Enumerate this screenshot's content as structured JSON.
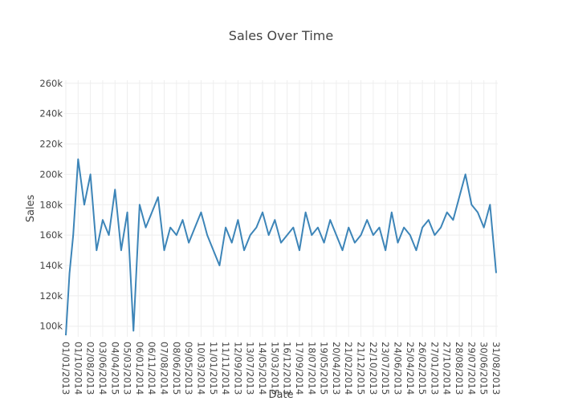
{
  "chart_data": {
    "type": "line",
    "title": "Sales Over Time",
    "xlabel": "Date",
    "ylabel": "Sales",
    "ylim": [
      93000,
      262000
    ],
    "y_ticks": [
      100000,
      120000,
      140000,
      160000,
      180000,
      200000,
      220000,
      240000,
      260000
    ],
    "y_tick_labels": [
      "100k",
      "120k",
      "140k",
      "160k",
      "180k",
      "200k",
      "220k",
      "240k",
      "260k"
    ],
    "x_tick_labels": [
      "01/01/2013",
      "01/10/2014",
      "02/08/2013",
      "03/06/2014",
      "04/04/2015",
      "05/03/2013",
      "06/01/2014",
      "06/11/2014",
      "07/08/2014",
      "08/06/2015",
      "09/05/2013",
      "10/03/2014",
      "11/01/2015",
      "11/11/2014",
      "12/09/2013",
      "13/07/2013",
      "14/05/2014",
      "15/03/2015",
      "16/12/2013",
      "17/09/2014",
      "18/07/2014",
      "19/05/2015",
      "20/04/2013",
      "21/02/2014",
      "21/12/2015",
      "22/10/2013",
      "23/07/2015",
      "24/06/2013",
      "25/04/2014",
      "26/02/2015",
      "27/01/2013",
      "27/10/2014",
      "28/08/2013",
      "29/07/2014",
      "30/06/2015",
      "31/08/2013"
    ],
    "grid": true,
    "legend": "none",
    "series": [
      {
        "color": "#3d85b8",
        "x_index": [
          0,
          0.3,
          0.6,
          1,
          1.5,
          2,
          2.5,
          3,
          3.5,
          4,
          4.5,
          5,
          5.5,
          6,
          6.5,
          7,
          7.5,
          8,
          8.5,
          9,
          9.5,
          10,
          10.5,
          11,
          11.5,
          12,
          12.5,
          13,
          13.5,
          14,
          14.5,
          15,
          15.5,
          16,
          16.5,
          17,
          17.5,
          18,
          18.5,
          19,
          19.5,
          20,
          20.5,
          21,
          21.5,
          22,
          22.5,
          23,
          23.5,
          24,
          24.5,
          25,
          25.5,
          26,
          26.5,
          27,
          27.5,
          28,
          28.5,
          29,
          29.5,
          30,
          30.5,
          31,
          31.5,
          32,
          32.5,
          33,
          33.5,
          34,
          34.5,
          35
        ],
        "values": [
          94000,
          135000,
          160000,
          210000,
          180000,
          200000,
          150000,
          170000,
          160000,
          190000,
          150000,
          175000,
          97000,
          180000,
          165000,
          175000,
          185000,
          150000,
          165000,
          160000,
          170000,
          155000,
          165000,
          175000,
          160000,
          150000,
          140000,
          165000,
          155000,
          170000,
          150000,
          160000,
          165000,
          175000,
          160000,
          170000,
          155000,
          160000,
          165000,
          150000,
          175000,
          160000,
          165000,
          155000,
          170000,
          160000,
          150000,
          165000,
          155000,
          160000,
          170000,
          160000,
          165000,
          150000,
          175000,
          155000,
          165000,
          160000,
          150000,
          165000,
          170000,
          160000,
          165000,
          175000,
          170000,
          185000,
          200000,
          180000,
          175000,
          165000,
          180000,
          135000
        ]
      }
    ]
  }
}
